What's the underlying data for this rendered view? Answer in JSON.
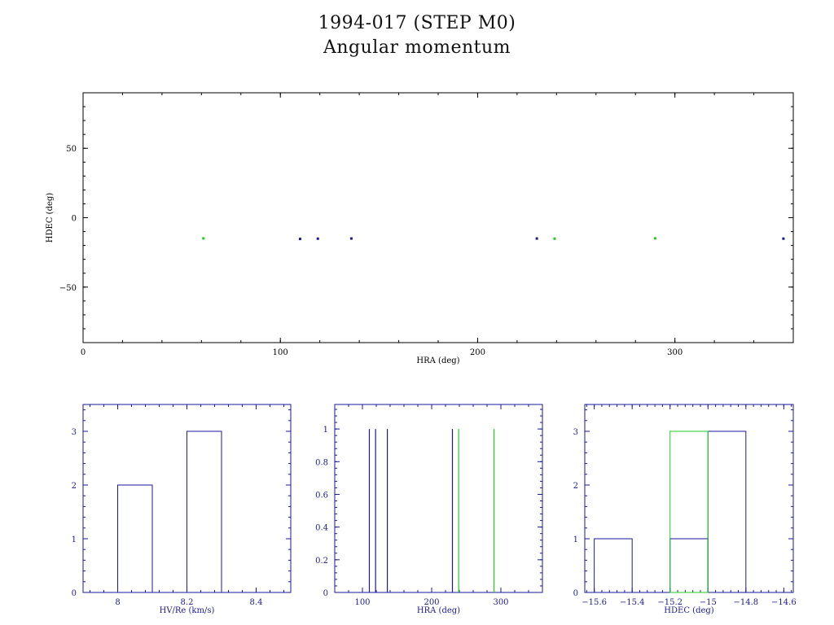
{
  "page": {
    "title": "1994-017 (STEP M0)",
    "subtitle": "Angular momentum"
  },
  "colors": {
    "blue": "#1a1a99",
    "green": "#22cc22",
    "black": "#000000"
  },
  "chart_data": [
    {
      "type": "scatter",
      "xlabel": "HRA (deg)",
      "ylabel": "HDEC (deg)",
      "xlim": [
        0,
        360
      ],
      "ylim": [
        -90,
        90
      ],
      "xticks": [
        0,
        100,
        200,
        300
      ],
      "yticks": [
        -50,
        0,
        50
      ],
      "series": [
        {
          "color": "blue",
          "points": [
            [
              110,
              -15.3
            ],
            [
              119,
              -15.1
            ],
            [
              136,
              -15.0
            ],
            [
              230,
              -15.0
            ],
            [
              355,
              -15.1
            ]
          ]
        },
        {
          "color": "green",
          "points": [
            [
              61,
              -14.9
            ],
            [
              239,
              -15.1
            ],
            [
              290,
              -14.9
            ]
          ]
        }
      ]
    },
    {
      "type": "bar",
      "xlabel": "HV/Re (km/s)",
      "ylabel": "",
      "xlim": [
        7.9,
        8.5
      ],
      "ylim": [
        0,
        3.5
      ],
      "xticks": [
        8,
        8.2,
        8.4
      ],
      "yticks": [
        0,
        1,
        2,
        3
      ],
      "series": [
        {
          "color": "blue",
          "bins": [
            [
              8.0,
              8.1,
              2
            ],
            [
              8.2,
              8.3,
              3
            ]
          ]
        }
      ]
    },
    {
      "type": "bar",
      "xlabel": "HRA (deg)",
      "ylabel": "",
      "xlim": [
        60,
        360
      ],
      "ylim": [
        0,
        1.15
      ],
      "xticks": [
        100,
        200,
        300
      ],
      "yticks": [
        0,
        0.2,
        0.4,
        0.6,
        0.8,
        1
      ],
      "series": [
        {
          "color": "blue",
          "values_x": [
            110,
            119,
            136,
            230
          ],
          "value": 1
        },
        {
          "color": "green",
          "values_x": [
            239,
            290
          ],
          "value": 1
        }
      ]
    },
    {
      "type": "bar",
      "xlabel": "HDEC (deg)",
      "ylabel": "",
      "xlim": [
        -15.65,
        -14.55
      ],
      "ylim": [
        0,
        3.5
      ],
      "xticks": [
        -15.6,
        -15.4,
        -15.2,
        -15,
        -14.8,
        -14.6
      ],
      "yticks": [
        0,
        1,
        2,
        3
      ],
      "series": [
        {
          "color": "blue",
          "bins": [
            [
              -15.6,
              -15.4,
              1
            ],
            [
              -15.2,
              -15.0,
              1
            ],
            [
              -15.0,
              -14.8,
              3
            ]
          ]
        },
        {
          "color": "green",
          "bins": [
            [
              -15.2,
              -15.0,
              3
            ]
          ]
        }
      ]
    }
  ]
}
